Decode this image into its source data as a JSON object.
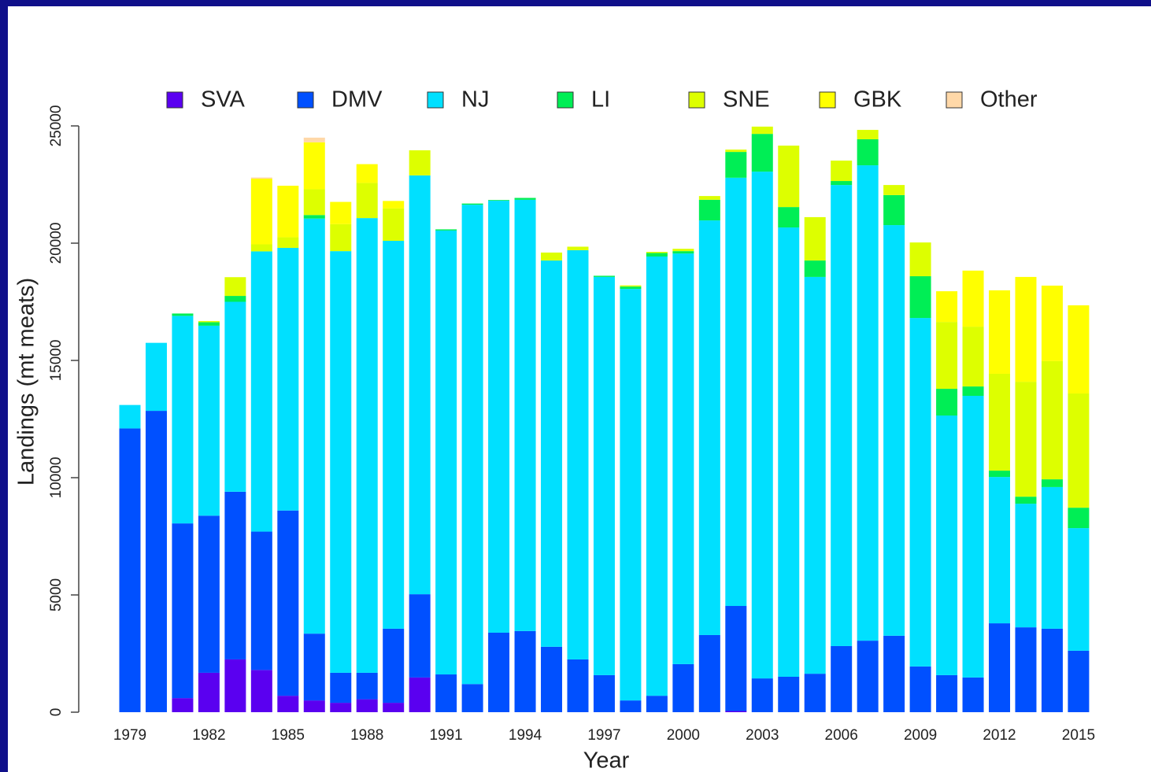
{
  "chart_data": {
    "type": "stacked_bar",
    "xlabel": "Year",
    "ylabel": "Landings (mt meats)",
    "categories": [
      "1979",
      null,
      null,
      "1982",
      null,
      null,
      "1985",
      null,
      null,
      "1988",
      null,
      null,
      "1991",
      null,
      null,
      "1994",
      null,
      null,
      "1997",
      null,
      null,
      "2000",
      null,
      null,
      "2003",
      null,
      null,
      "2006",
      null,
      null,
      "2009",
      null,
      null,
      "2012",
      null,
      null,
      "2015"
    ],
    "ylim": [
      0,
      25000
    ],
    "yticks": [
      0,
      5000,
      10000,
      15000,
      20000,
      25000
    ],
    "legend": "top",
    "series": [
      {
        "name": "SVA",
        "color": "#5a00f0",
        "values": [
          0,
          0,
          600,
          1680,
          2250,
          1800,
          700,
          500,
          400,
          550,
          400,
          1480,
          0,
          0,
          0,
          0,
          0,
          0,
          0,
          0,
          0,
          0,
          0,
          50,
          0,
          0,
          0,
          0,
          0,
          0,
          0,
          0,
          0,
          0,
          0,
          0,
          0
        ]
      },
      {
        "name": "DMV",
        "color": "#0050ff",
        "values": [
          12100,
          12850,
          7450,
          6700,
          7150,
          5900,
          7900,
          2850,
          1280,
          1130,
          3160,
          3550,
          1610,
          1200,
          3390,
          3460,
          2790,
          2250,
          1580,
          500,
          700,
          2050,
          3290,
          4480,
          1440,
          1510,
          1640,
          2820,
          3050,
          3260,
          1950,
          1580,
          1480,
          3790,
          3620,
          3560,
          2620
        ]
      },
      {
        "name": "NJ",
        "color": "#00e0ff",
        "values": [
          1000,
          2900,
          8850,
          8100,
          8100,
          11950,
          11200,
          17700,
          17980,
          19390,
          16540,
          17860,
          18930,
          20440,
          18420,
          18390,
          16470,
          17450,
          16980,
          17550,
          18730,
          17510,
          17680,
          18260,
          21610,
          19160,
          16920,
          19660,
          20270,
          17510,
          14860,
          11070,
          12010,
          6240,
          5270,
          6040,
          5230
        ]
      },
      {
        "name": "LI",
        "color": "#00ee55",
        "values": [
          0,
          0,
          100,
          150,
          250,
          0,
          0,
          150,
          0,
          0,
          0,
          0,
          50,
          50,
          30,
          80,
          0,
          0,
          50,
          100,
          150,
          100,
          880,
          1100,
          1610,
          870,
          700,
          170,
          1110,
          1280,
          1780,
          1140,
          400,
          270,
          300,
          330,
          870
        ]
      },
      {
        "name": "SNE",
        "color": "#ddff00",
        "values": [
          0,
          0,
          0,
          50,
          800,
          300,
          450,
          1100,
          1150,
          1500,
          1380,
          1070,
          0,
          0,
          0,
          0,
          340,
          150,
          0,
          50,
          50,
          100,
          160,
          100,
          310,
          2620,
          1850,
          870,
          400,
          430,
          1440,
          2850,
          2550,
          4130,
          4900,
          5040,
          4870
        ]
      },
      {
        "name": "GBK",
        "color": "#ffff00",
        "values": [
          0,
          0,
          0,
          0,
          0,
          2800,
          2200,
          2000,
          950,
          800,
          320,
          0,
          0,
          0,
          0,
          0,
          0,
          0,
          0,
          0,
          0,
          0,
          0,
          0,
          0,
          0,
          0,
          0,
          0,
          0,
          0,
          1310,
          2390,
          3560,
          4470,
          3220,
          3760
        ]
      },
      {
        "name": "Other",
        "color": "#ffd8a8",
        "values": [
          0,
          0,
          0,
          0,
          0,
          50,
          0,
          200,
          0,
          0,
          0,
          0,
          0,
          0,
          0,
          0,
          0,
          0,
          0,
          0,
          0,
          0,
          0,
          0,
          0,
          0,
          0,
          0,
          0,
          0,
          0,
          0,
          0,
          0,
          0,
          0,
          0
        ]
      }
    ]
  }
}
